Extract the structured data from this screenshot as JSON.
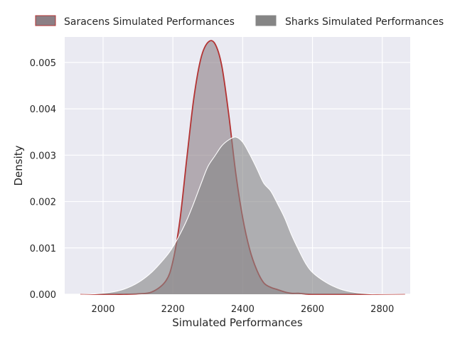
{
  "chart_data": {
    "type": "area",
    "xlabel": "Simulated Performances",
    "ylabel": "Density",
    "xlim": [
      1890,
      2880
    ],
    "ylim": [
      0,
      0.00555
    ],
    "grid": true,
    "legend_placement": "top, outside, two columns",
    "x_ticks": [
      2000,
      2200,
      2400,
      2600,
      2800
    ],
    "x_tick_labels": [
      "2000",
      "2200",
      "2400",
      "2600",
      "2800"
    ],
    "y_ticks": [
      0,
      0.001,
      0.002,
      0.003,
      0.004,
      0.005
    ],
    "y_tick_labels": [
      "0.000",
      "0.001",
      "0.002",
      "0.003",
      "0.004",
      "0.005"
    ],
    "x": [
      1935,
      1980,
      2020,
      2060,
      2100,
      2140,
      2180,
      2200,
      2220,
      2240,
      2260,
      2280,
      2300,
      2320,
      2340,
      2360,
      2380,
      2400,
      2420,
      2440,
      2460,
      2480,
      2500,
      2520,
      2540,
      2560,
      2580,
      2600,
      2640,
      2680,
      2720,
      2760,
      2800,
      2865
    ],
    "series": [
      {
        "name": "Saracens Simulated Performances",
        "fill_color": "#8c7f85",
        "line_color": "#b33333",
        "values": [
          0,
          0,
          0,
          0,
          1e-05,
          5e-05,
          0.00029,
          0.00071,
          0.00159,
          0.00294,
          0.00423,
          0.00508,
          0.00543,
          0.00541,
          0.00493,
          0.00388,
          0.00262,
          0.00165,
          0.00097,
          0.00053,
          0.00025,
          0.00015,
          0.0001,
          5e-05,
          2e-05,
          2e-05,
          5e-06,
          0,
          0,
          0,
          0,
          0,
          0,
          0
        ]
      },
      {
        "name": "Sharks Simulated Performances",
        "fill_color": "#858585",
        "line_color": "#ffffff",
        "values": [
          0,
          1e-05,
          4e-05,
          0.00011,
          0.00025,
          0.00048,
          0.00081,
          0.00102,
          0.00129,
          0.0016,
          0.00197,
          0.00237,
          0.00275,
          0.00298,
          0.0032,
          0.00333,
          0.00339,
          0.00328,
          0.00302,
          0.00272,
          0.0024,
          0.00223,
          0.00195,
          0.00165,
          0.00128,
          0.00096,
          0.00067,
          0.00047,
          0.00025,
          0.00011,
          4e-05,
          1e-05,
          5e-06,
          0
        ]
      }
    ]
  }
}
